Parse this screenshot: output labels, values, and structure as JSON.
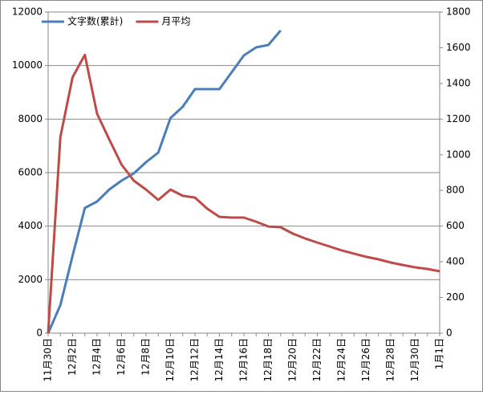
{
  "chart_data": {
    "type": "line",
    "categories": [
      "11月30日",
      null,
      "12月2日",
      null,
      "12月4日",
      null,
      "12月6日",
      null,
      "12月8日",
      null,
      "12月10日",
      null,
      "12月12日",
      null,
      "12月14日",
      null,
      "12月16日",
      null,
      "12月18日",
      null,
      "12月20日",
      null,
      "12月22日",
      null,
      "12月24日",
      null,
      "12月26日",
      null,
      "12月28日",
      null,
      "12月30日",
      null,
      "1月1日"
    ],
    "series": [
      {
        "name": "文字数(累計)",
        "color": "#4a7ebb",
        "values": [
          0,
          1050,
          2900,
          4680,
          4920,
          5370,
          5700,
          5970,
          6390,
          6750,
          8040,
          8460,
          9120,
          9120,
          9120,
          9750,
          10380,
          10680,
          10770,
          11310,
          null,
          null,
          null,
          null,
          null,
          null,
          null,
          null,
          null,
          null,
          null,
          null,
          null
        ]
      },
      {
        "name": "月平均",
        "color": "#be4b48",
        "axis": "y2",
        "values": [
          0,
          1100,
          1435,
          1560,
          1230,
          1085,
          945,
          855,
          805,
          747,
          805,
          770,
          760,
          698,
          652,
          648,
          648,
          625,
          598,
          594,
          558,
          531,
          508,
          486,
          464,
          446,
          428,
          414,
          396,
          382,
          369,
          360,
          347
        ]
      }
    ],
    "ylim": [
      0,
      12000
    ],
    "yticks": [
      0,
      2000,
      4000,
      6000,
      8000,
      10000,
      12000
    ],
    "y2lim": [
      0,
      1800
    ],
    "y2ticks": [
      0,
      200,
      400,
      600,
      800,
      1000,
      1200,
      1400,
      1600,
      1800
    ],
    "grid": true,
    "legend": "top-left"
  }
}
